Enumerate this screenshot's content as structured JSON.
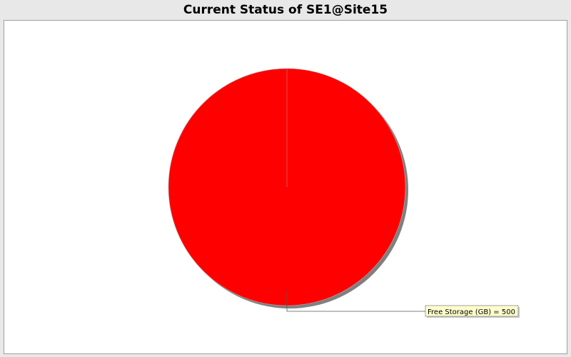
{
  "chart_data": {
    "type": "pie",
    "title": "Current Status of SE1@Site15",
    "slices": [
      {
        "label": "Free Storage (GB)",
        "value": 500,
        "color": "#ff0000"
      }
    ],
    "label_format": "{label} = {value}",
    "legend": "none"
  },
  "colors": {
    "background": "#e8e8e8",
    "plot_background": "#ffffff",
    "label_box_fill": "#ffffcc",
    "label_box_border": "#888888",
    "shadow": "#808080"
  }
}
